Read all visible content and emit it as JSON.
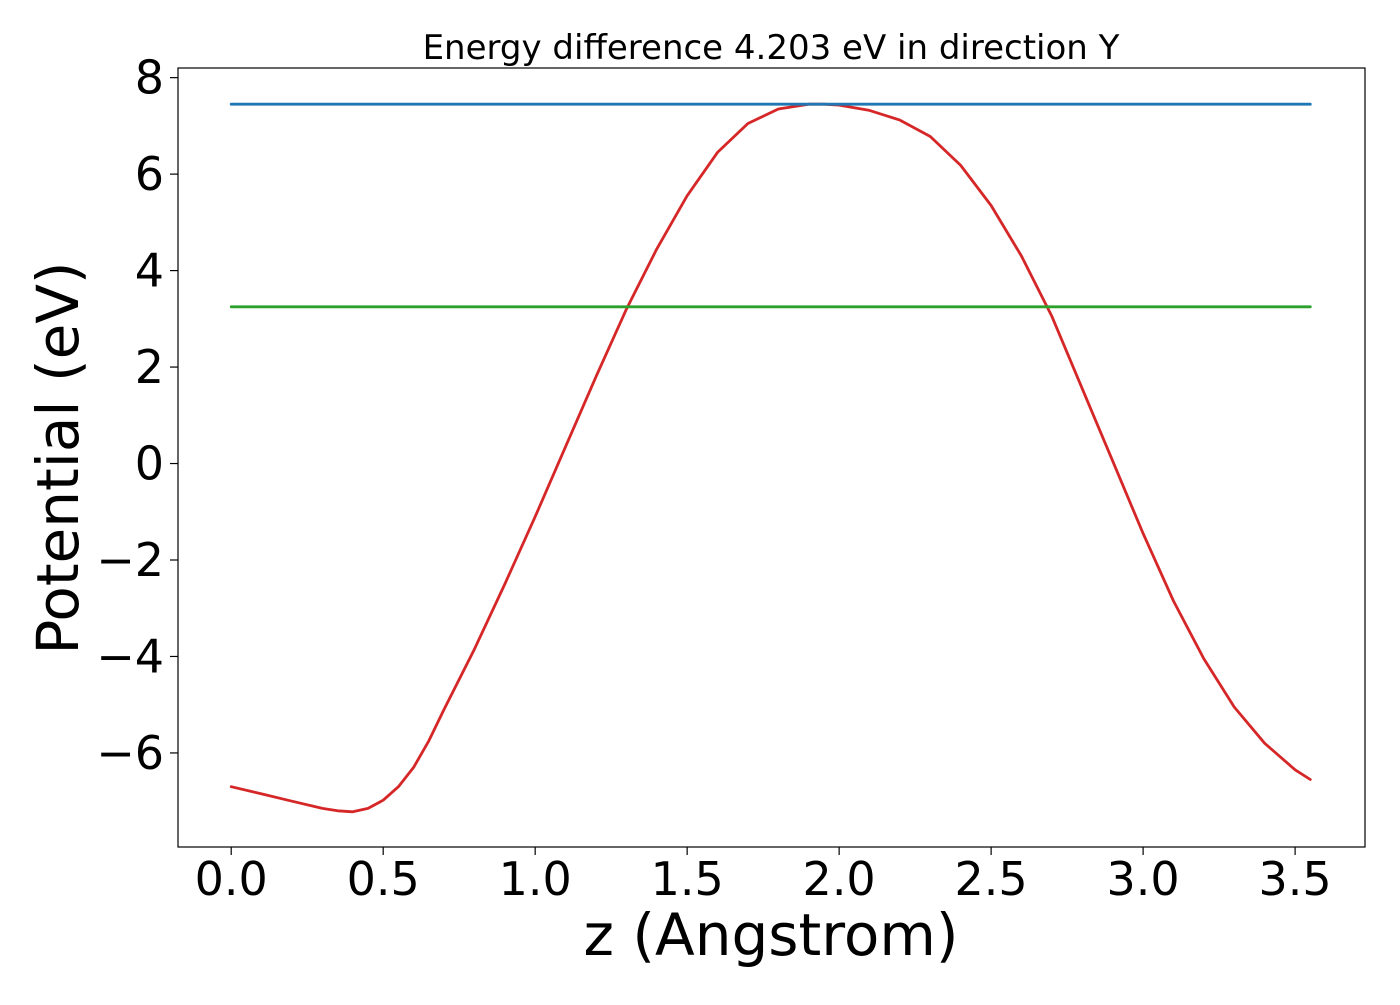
{
  "chart_data": {
    "type": "line",
    "title": "Energy difference 4.203 eV in direction Y",
    "xlabel": "z (Angstrom)",
    "ylabel": "Potential (eV)",
    "xlim": [
      -0.175,
      3.73
    ],
    "ylim": [
      -7.95,
      8.2
    ],
    "x_ticks": [
      {
        "value": 0.0,
        "label": "0.0"
      },
      {
        "value": 0.5,
        "label": "0.5"
      },
      {
        "value": 1.0,
        "label": "1.0"
      },
      {
        "value": 1.5,
        "label": "1.5"
      },
      {
        "value": 2.0,
        "label": "2.0"
      },
      {
        "value": 2.5,
        "label": "2.5"
      },
      {
        "value": 3.0,
        "label": "3.0"
      },
      {
        "value": 3.5,
        "label": "3.5"
      }
    ],
    "y_ticks": [
      {
        "value": -6,
        "label": "−6"
      },
      {
        "value": -4,
        "label": "−4"
      },
      {
        "value": -2,
        "label": "−2"
      },
      {
        "value": 0,
        "label": "0"
      },
      {
        "value": 2,
        "label": "2"
      },
      {
        "value": 4,
        "label": "4"
      },
      {
        "value": 6,
        "label": "6"
      },
      {
        "value": 8,
        "label": "8"
      }
    ],
    "grid": false,
    "legend": "none",
    "series": [
      {
        "color": "#d62728",
        "x": [
          0.0,
          0.1,
          0.2,
          0.3,
          0.35,
          0.4,
          0.45,
          0.5,
          0.55,
          0.6,
          0.65,
          0.7,
          0.8,
          0.9,
          1.0,
          1.1,
          1.2,
          1.3,
          1.4,
          1.5,
          1.6,
          1.7,
          1.8,
          1.9,
          1.95,
          2.0,
          2.1,
          2.2,
          2.3,
          2.4,
          2.5,
          2.6,
          2.7,
          2.8,
          2.9,
          3.0,
          3.1,
          3.2,
          3.3,
          3.4,
          3.5,
          3.55
        ],
        "y": [
          -6.7,
          -6.85,
          -7.0,
          -7.15,
          -7.2,
          -7.22,
          -7.15,
          -6.98,
          -6.7,
          -6.3,
          -5.75,
          -5.1,
          -3.85,
          -2.5,
          -1.1,
          0.35,
          1.8,
          3.2,
          4.45,
          5.55,
          6.45,
          7.05,
          7.35,
          7.45,
          7.45,
          7.43,
          7.32,
          7.12,
          6.78,
          6.18,
          5.35,
          4.3,
          3.05,
          1.55,
          0.05,
          -1.45,
          -2.85,
          -4.05,
          -5.05,
          -5.8,
          -6.35,
          -6.55
        ]
      },
      {
        "color": "#1f77b4",
        "x": [
          0.0,
          3.55
        ],
        "y": [
          7.45,
          7.45
        ]
      },
      {
        "color": "#2ca02c",
        "x": [
          0.0,
          3.55
        ],
        "y": [
          3.25,
          3.25
        ]
      }
    ]
  }
}
